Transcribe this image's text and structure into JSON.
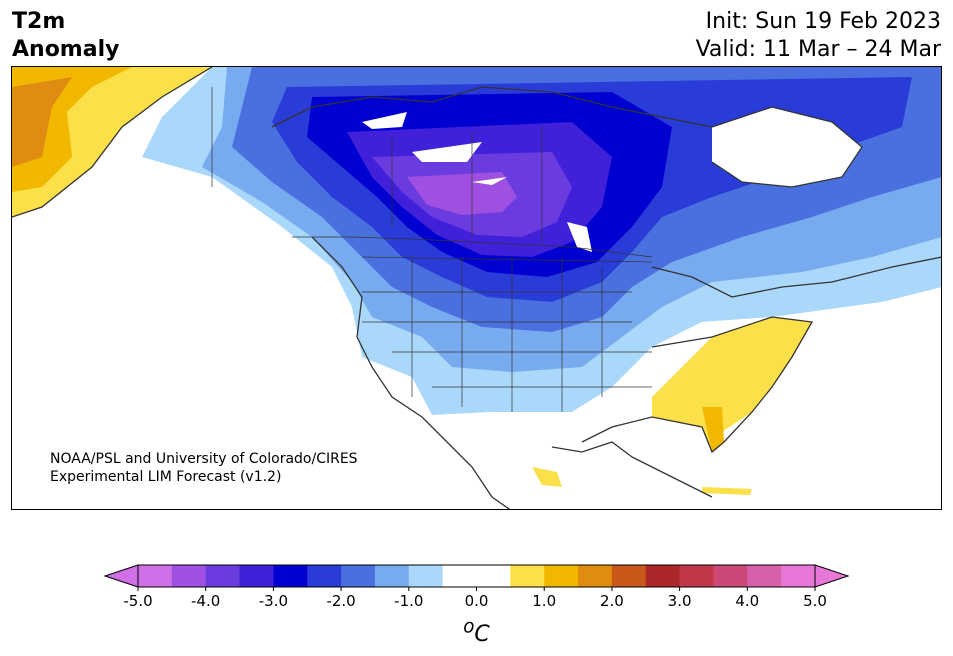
{
  "header": {
    "title_line1": "T2m",
    "title_line2": "Anomaly",
    "init": "Init: Sun 19 Feb 2023",
    "valid": "Valid: 11 Mar – 24 Mar"
  },
  "credit": {
    "line1": "NOAA/PSL and University of Colorado/CIRES",
    "line2": "Experimental LIM Forecast (v1.2)"
  },
  "colorbar": {
    "colors": [
      "#d070e8",
      "#a050e0",
      "#6a3ce0",
      "#4020d8",
      "#0000d0",
      "#2a3cd8",
      "#4a70e0",
      "#78aaf0",
      "#aad8fa",
      "#ffffff",
      "#ffffff",
      "#fce04a",
      "#f2b800",
      "#e08c10",
      "#c85818",
      "#aa2828",
      "#c03848",
      "#cc4878",
      "#d860a8",
      "#e878d8"
    ],
    "tick_labels": [
      "-5.0",
      "-4.0",
      "-3.0",
      "-2.0",
      "-1.0",
      "0.0",
      "1.0",
      "2.0",
      "3.0",
      "4.0",
      "5.0"
    ],
    "unit_label": "oC"
  },
  "map_colors": {
    "ocean": "#ffffff",
    "land": "#ffffff",
    "coast": "#333333"
  }
}
